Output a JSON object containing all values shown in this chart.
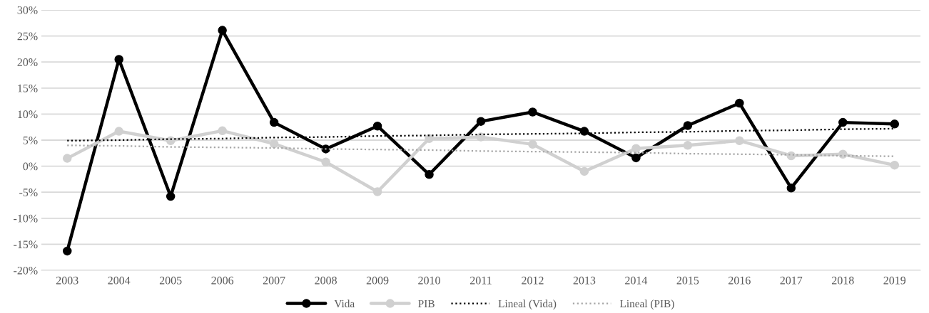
{
  "chart_data": {
    "type": "line",
    "categories": [
      "2003",
      "2004",
      "2005",
      "2006",
      "2007",
      "2008",
      "2009",
      "2010",
      "2011",
      "2012",
      "2013",
      "2014",
      "2015",
      "2016",
      "2017",
      "2018",
      "2019"
    ],
    "series": [
      {
        "name": "Vida",
        "color": "#000000",
        "marker": "circle",
        "line_style": "solid",
        "values": [
          -16.3,
          20.5,
          -5.8,
          26.1,
          8.4,
          3.3,
          7.7,
          -1.6,
          8.6,
          10.4,
          6.7,
          1.6,
          7.8,
          12.1,
          -4.2,
          8.4,
          8.1
        ]
      },
      {
        "name": "PIB",
        "color": "#d0d0d0",
        "marker": "circle",
        "line_style": "solid",
        "values": [
          1.5,
          6.7,
          4.9,
          6.8,
          4.3,
          0.8,
          -4.9,
          5.3,
          5.6,
          4.2,
          -1.0,
          3.4,
          4.0,
          4.9,
          2.0,
          2.3,
          0.2
        ]
      },
      {
        "name": "Lineal (Vida)",
        "type": "line",
        "color": "#000000",
        "marker": "none",
        "line_style": "dotted",
        "values": [
          4.9,
          5.0,
          5.2,
          5.3,
          5.5,
          5.6,
          5.8,
          5.9,
          6.1,
          6.2,
          6.3,
          6.5,
          6.6,
          6.8,
          6.9,
          7.1,
          7.2
        ]
      },
      {
        "name": "Lineal (PIB)",
        "type": "line",
        "color": "#a6a6a6",
        "marker": "none",
        "line_style": "dotted",
        "values": [
          4.0,
          3.9,
          3.7,
          3.6,
          3.5,
          3.3,
          3.2,
          3.1,
          2.9,
          2.8,
          2.7,
          2.6,
          2.4,
          2.3,
          2.2,
          2.0,
          1.9
        ]
      }
    ],
    "ylim": [
      -20,
      30
    ],
    "yticks": [
      {
        "value": -20,
        "label": "-20%"
      },
      {
        "value": -15,
        "label": "-15%"
      },
      {
        "value": -10,
        "label": "-10%"
      },
      {
        "value": -5,
        "label": "-5%"
      },
      {
        "value": 0,
        "label": "0%"
      },
      {
        "value": 5,
        "label": "5%"
      },
      {
        "value": 10,
        "label": "10%"
      },
      {
        "value": 15,
        "label": "15%"
      },
      {
        "value": 20,
        "label": "20%"
      },
      {
        "value": 25,
        "label": "25%"
      },
      {
        "value": 30,
        "label": "30%"
      }
    ],
    "grid": "y",
    "legend": "bottom"
  }
}
